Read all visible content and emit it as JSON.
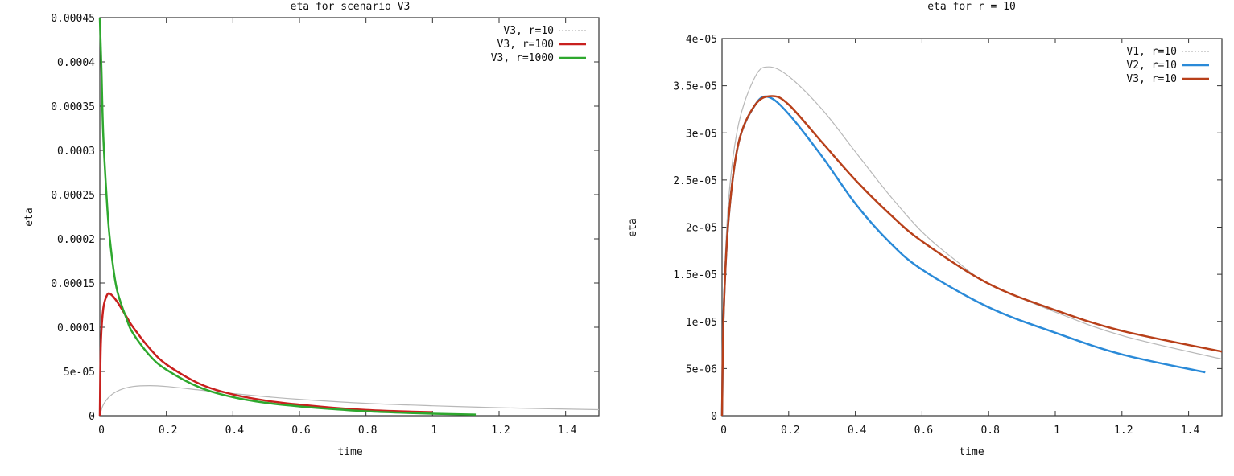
{
  "chart_data": [
    {
      "type": "line",
      "title": "eta for scenario V3",
      "xlabel": "time",
      "ylabel": "eta",
      "xlim": [
        0,
        1.5
      ],
      "ylim": [
        0,
        0.00045
      ],
      "xticks": [
        "0",
        "0.2",
        "0.4",
        "0.6",
        "0.8",
        "1",
        "1.2",
        "1.4"
      ],
      "xtick_values": [
        0,
        0.2,
        0.4,
        0.6,
        0.8,
        1,
        1.2,
        1.4
      ],
      "yticks": [
        "0",
        "5e-05",
        "0.0001",
        "0.00015",
        "0.0002",
        "0.00025",
        "0.0003",
        "0.00035",
        "0.0004",
        "0.00045"
      ],
      "ytick_values": [
        0,
        5e-05,
        0.0001,
        0.00015,
        0.0002,
        0.00025,
        0.0003,
        0.00035,
        0.0004,
        0.00045
      ],
      "grid": false,
      "legend": "top-right",
      "series": [
        {
          "name": "V3, r=10",
          "color": "#b8b8b8",
          "style": "thin",
          "points": [
            [
              0,
              0
            ],
            [
              0.01,
              1.2e-05
            ],
            [
              0.03,
              2.2e-05
            ],
            [
              0.06,
              2.9e-05
            ],
            [
              0.1,
              3.3e-05
            ],
            [
              0.15,
              3.4e-05
            ],
            [
              0.2,
              3.3e-05
            ],
            [
              0.3,
              2.9e-05
            ],
            [
              0.4,
              2.5e-05
            ],
            [
              0.5,
              2.15e-05
            ],
            [
              0.6,
              1.85e-05
            ],
            [
              0.8,
              1.4e-05
            ],
            [
              1.0,
              1.12e-05
            ],
            [
              1.2,
              9e-06
            ],
            [
              1.5,
              6.8e-06
            ]
          ]
        },
        {
          "name": "V3, r=100",
          "color": "#c8201e",
          "style": "thick",
          "points": [
            [
              0,
              0
            ],
            [
              0.003,
              8e-05
            ],
            [
              0.01,
              0.00012
            ],
            [
              0.02,
              0.000135
            ],
            [
              0.03,
              0.000138
            ],
            [
              0.05,
              0.00013
            ],
            [
              0.08,
              0.000112
            ],
            [
              0.1,
              0.0001
            ],
            [
              0.15,
              7.6e-05
            ],
            [
              0.2,
              5.8e-05
            ],
            [
              0.3,
              3.6e-05
            ],
            [
              0.4,
              2.4e-05
            ],
            [
              0.5,
              1.7e-05
            ],
            [
              0.6,
              1.25e-05
            ],
            [
              0.7,
              9e-06
            ],
            [
              0.8,
              6.5e-06
            ],
            [
              0.9,
              5e-06
            ],
            [
              1.0,
              4e-06
            ]
          ]
        },
        {
          "name": "V3, r=1000",
          "color": "#2ea82e",
          "style": "thick",
          "points": [
            [
              0,
              0.00045
            ],
            [
              0.005,
              0.00039
            ],
            [
              0.01,
              0.00032
            ],
            [
              0.02,
              0.00025
            ],
            [
              0.03,
              0.0002
            ],
            [
              0.05,
              0.000145
            ],
            [
              0.08,
              0.00011
            ],
            [
              0.1,
              9.3e-05
            ],
            [
              0.15,
              6.8e-05
            ],
            [
              0.2,
              5.2e-05
            ],
            [
              0.3,
              3.2e-05
            ],
            [
              0.4,
              2.1e-05
            ],
            [
              0.5,
              1.45e-05
            ],
            [
              0.6,
              1.05e-05
            ],
            [
              0.7,
              7.5e-06
            ],
            [
              0.8,
              5e-06
            ],
            [
              0.9,
              3.5e-06
            ],
            [
              1.0,
              2.3e-06
            ],
            [
              1.13,
              1.2e-06
            ]
          ]
        }
      ]
    },
    {
      "type": "line",
      "title": "eta for r = 10",
      "xlabel": "time",
      "ylabel": "eta",
      "xlim": [
        0,
        1.5
      ],
      "ylim": [
        0,
        4e-05
      ],
      "xticks": [
        "0",
        "0.2",
        "0.4",
        "0.6",
        "0.8",
        "1",
        "1.2",
        "1.4"
      ],
      "xtick_values": [
        0,
        0.2,
        0.4,
        0.6,
        0.8,
        1,
        1.2,
        1.4
      ],
      "yticks": [
        "0",
        "5e-06",
        "1e-05",
        "1.5e-05",
        "2e-05",
        "2.5e-05",
        "3e-05",
        "3.5e-05",
        "4e-05"
      ],
      "ytick_values": [
        0,
        5e-06,
        1e-05,
        1.5e-05,
        2e-05,
        2.5e-05,
        3e-05,
        3.5e-05,
        4e-05
      ],
      "grid": false,
      "legend": "top-right",
      "series": [
        {
          "name": "V1, r=10",
          "color": "#b8b8b8",
          "style": "thin",
          "points": [
            [
              0,
              0
            ],
            [
              0.005,
              1.2e-05
            ],
            [
              0.02,
              2.3e-05
            ],
            [
              0.05,
              3.1e-05
            ],
            [
              0.1,
              3.6e-05
            ],
            [
              0.14,
              3.7e-05
            ],
            [
              0.2,
              3.6e-05
            ],
            [
              0.3,
              3.25e-05
            ],
            [
              0.4,
              2.8e-05
            ],
            [
              0.5,
              2.35e-05
            ],
            [
              0.6,
              1.95e-05
            ],
            [
              0.7,
              1.65e-05
            ],
            [
              0.8,
              1.4e-05
            ],
            [
              1.0,
              1.1e-05
            ],
            [
              1.2,
              8.5e-06
            ],
            [
              1.5,
              6e-06
            ]
          ]
        },
        {
          "name": "V2, r=10",
          "color": "#2a8ad8",
          "style": "thick",
          "points": [
            [
              0,
              0
            ],
            [
              0.005,
              1.1e-05
            ],
            [
              0.02,
              2.1e-05
            ],
            [
              0.05,
              2.9e-05
            ],
            [
              0.1,
              3.3e-05
            ],
            [
              0.14,
              3.38e-05
            ],
            [
              0.2,
              3.2e-05
            ],
            [
              0.3,
              2.75e-05
            ],
            [
              0.4,
              2.25e-05
            ],
            [
              0.5,
              1.85e-05
            ],
            [
              0.6,
              1.55e-05
            ],
            [
              0.8,
              1.15e-05
            ],
            [
              1.0,
              8.8e-06
            ],
            [
              1.2,
              6.5e-06
            ],
            [
              1.45,
              4.6e-06
            ]
          ]
        },
        {
          "name": "V3, r=10",
          "color": "#b8401a",
          "style": "thick",
          "points": [
            [
              0,
              0
            ],
            [
              0.005,
              1.1e-05
            ],
            [
              0.02,
              2.1e-05
            ],
            [
              0.05,
              2.9e-05
            ],
            [
              0.1,
              3.3e-05
            ],
            [
              0.15,
              3.39e-05
            ],
            [
              0.2,
              3.3e-05
            ],
            [
              0.3,
              2.9e-05
            ],
            [
              0.4,
              2.5e-05
            ],
            [
              0.5,
              2.15e-05
            ],
            [
              0.6,
              1.85e-05
            ],
            [
              0.8,
              1.4e-05
            ],
            [
              1.0,
              1.12e-05
            ],
            [
              1.2,
              9e-06
            ],
            [
              1.5,
              6.8e-06
            ]
          ]
        }
      ]
    }
  ]
}
